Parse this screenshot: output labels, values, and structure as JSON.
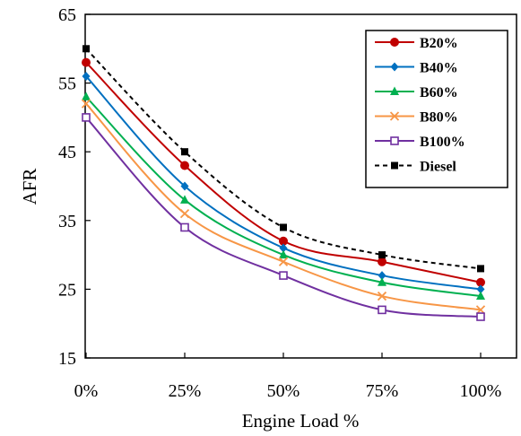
{
  "chart_data": {
    "type": "line",
    "xlabel": "Engine Load %",
    "ylabel": "AFR",
    "categories": [
      "0%",
      "25%",
      "50%",
      "75%",
      "100%"
    ],
    "x": [
      0,
      25,
      50,
      75,
      100
    ],
    "ylim": [
      15,
      65
    ],
    "yticks": [
      "15",
      "25",
      "35",
      "45",
      "55",
      "65"
    ],
    "grid": false,
    "legend_position": "top-right",
    "series": [
      {
        "name": "B20%",
        "values": [
          58,
          43,
          32,
          29,
          26
        ],
        "color": "#c00000",
        "marker": "circle",
        "dash": "solid"
      },
      {
        "name": "B40%",
        "values": [
          56,
          40,
          31,
          27,
          25
        ],
        "color": "#0070c0",
        "marker": "diamond",
        "dash": "solid"
      },
      {
        "name": "B60%",
        "values": [
          53,
          38,
          30,
          26,
          24
        ],
        "color": "#00b050",
        "marker": "triangle",
        "dash": "solid"
      },
      {
        "name": "B80%",
        "values": [
          52,
          36,
          29,
          24,
          22
        ],
        "color": "#f79646",
        "marker": "x",
        "dash": "solid"
      },
      {
        "name": "B100%",
        "values": [
          50,
          34,
          27,
          22,
          21
        ],
        "color": "#7030a0",
        "marker": "square-open",
        "dash": "solid"
      },
      {
        "name": "Diesel",
        "values": [
          60,
          45,
          34,
          30,
          28
        ],
        "color": "#000000",
        "marker": "square",
        "dash": "dashed"
      }
    ]
  }
}
